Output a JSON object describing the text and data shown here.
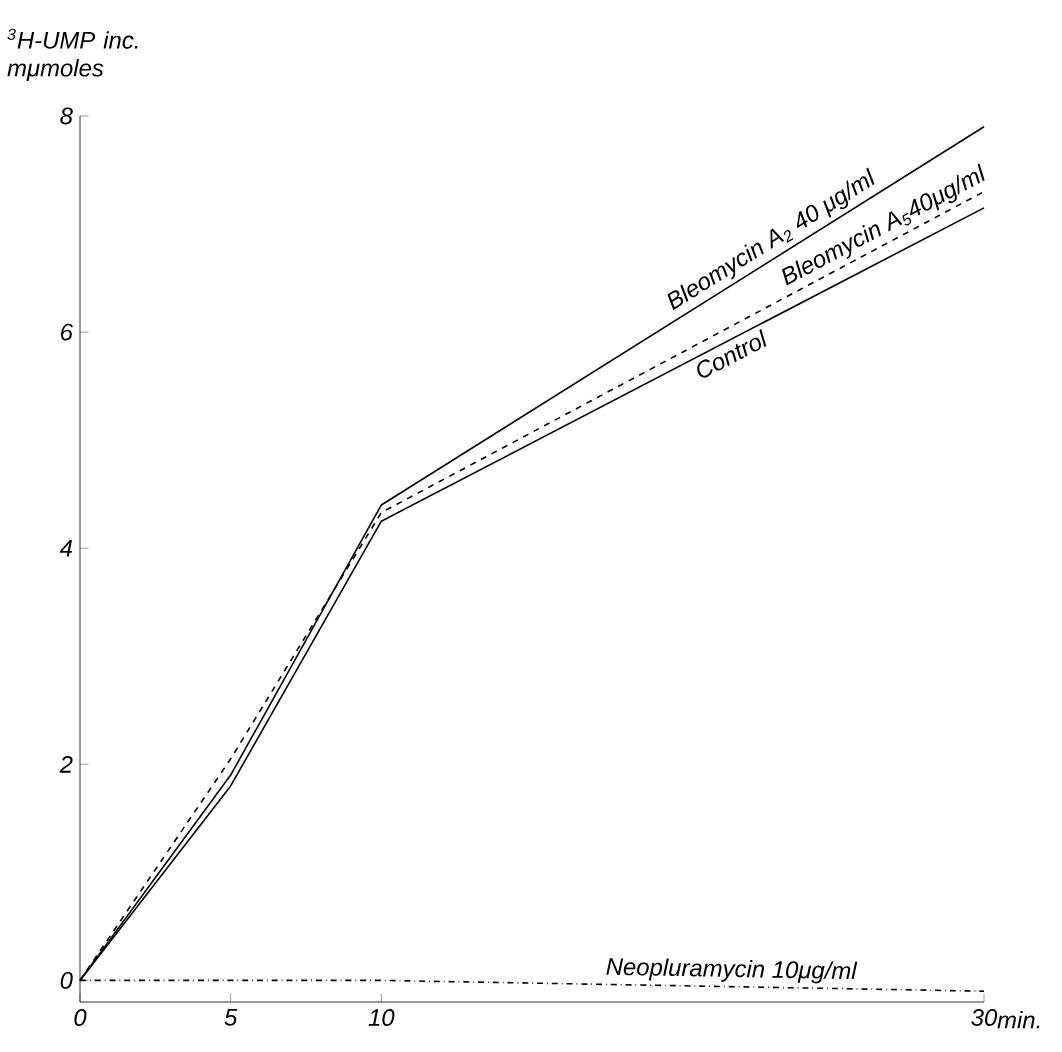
{
  "chart_data": {
    "type": "line",
    "ylabel": "$^{3}$H-UMP inc. mμmoles",
    "xlabel": "min.",
    "x": [
      0,
      5,
      10,
      30
    ],
    "series": [
      {
        "name": "Bleomycin A$_{2}$ 40 μg/ml",
        "color": "#000000",
        "line_style": "solid",
        "values": [
          0,
          1.9,
          4.4,
          7.9
        ]
      },
      {
        "name": "Bleomycin A$_{5}$40μg/ml",
        "color": "#000000",
        "line_style": "dashed",
        "values": [
          0,
          2.05,
          4.33,
          7.3
        ]
      },
      {
        "name": "Control",
        "color": "#000000",
        "line_style": "solid",
        "values": [
          0,
          1.8,
          4.25,
          7.15
        ]
      },
      {
        "name": "Neopluramycin 10μg/ml",
        "color": "#000000",
        "line_style": "dashdot",
        "values": [
          0,
          0,
          0,
          -0.1
        ]
      }
    ],
    "xlim": [
      0,
      30
    ],
    "xticks": [
      0,
      5,
      10,
      30
    ],
    "ylim": [
      -0.2,
      8
    ],
    "yticks": [
      0,
      2,
      4,
      6,
      8
    ],
    "marker": "none"
  }
}
